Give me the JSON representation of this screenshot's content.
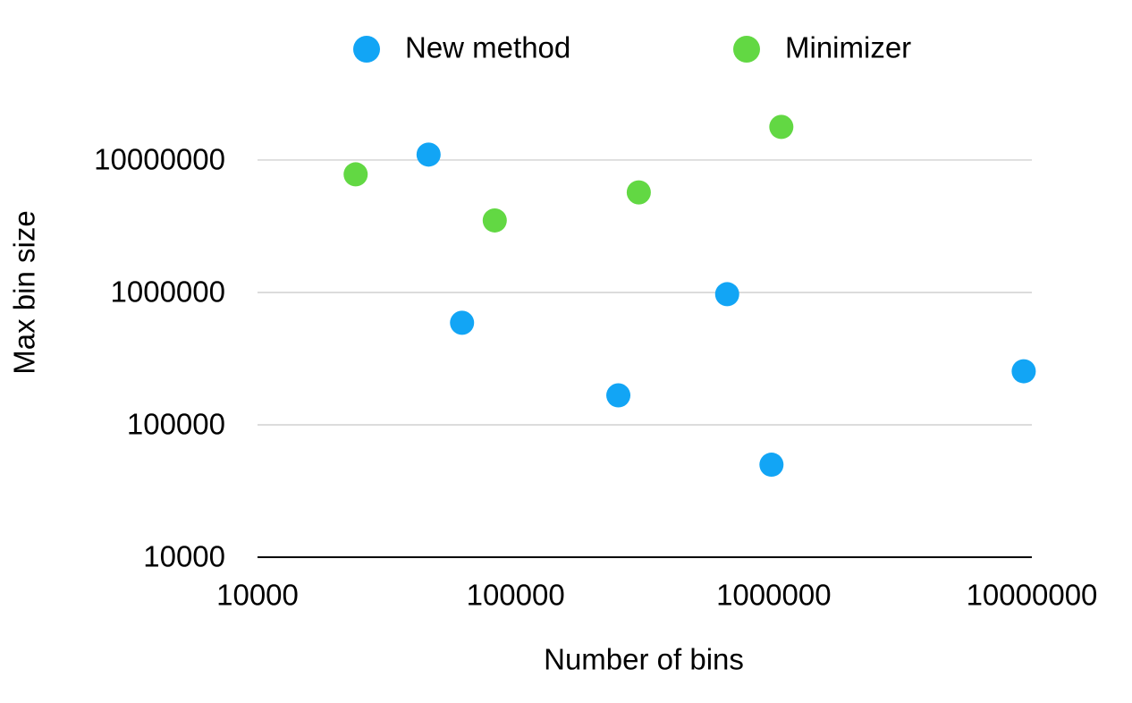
{
  "chart_data": {
    "type": "scatter",
    "log_x": true,
    "log_y": true,
    "grid": true,
    "legend": "top",
    "xlabel": "Number of bins",
    "ylabel": "Max bin size",
    "xlim": [
      10000,
      10000000
    ],
    "xticks": [
      10000,
      100000,
      1000000,
      10000000
    ],
    "ylim": [
      10000,
      50000000
    ],
    "yticks": [
      10000,
      100000,
      1000000,
      10000000
    ],
    "series": [
      {
        "name": "New method",
        "color": "#12a5f5",
        "x": [
          46000,
          62000,
          250000,
          660000,
          980000,
          9300000
        ],
        "values": [
          11000000,
          590000,
          167000,
          970000,
          50000,
          254000
        ]
      },
      {
        "name": "Minimizer",
        "color": "#62d843",
        "x": [
          24000,
          83000,
          300000,
          1070000
        ],
        "values": [
          7800000,
          3500000,
          5700000,
          17800000
        ]
      }
    ]
  }
}
